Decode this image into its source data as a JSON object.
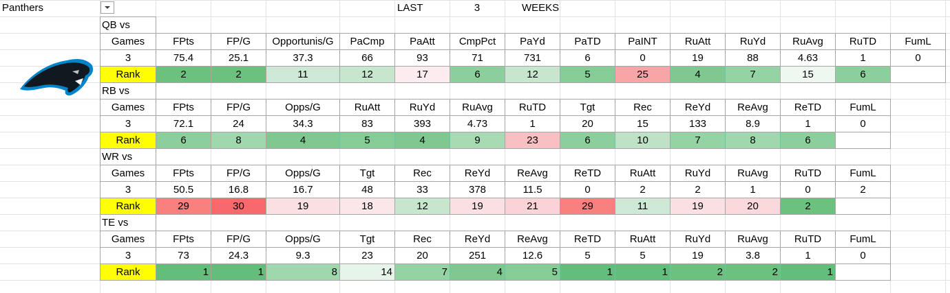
{
  "header": {
    "team": "Panthers",
    "last": "LAST",
    "weeks_count": 3,
    "weeks": "WEEKS"
  },
  "sections": [
    {
      "title": "QB vs",
      "columns": [
        "Games",
        "FPts",
        "FP/G",
        "Opportunis/G",
        "PaCmp",
        "PaAtt",
        "CmpPct",
        "PaYd",
        "PaTD",
        "PaINT",
        "RuAtt",
        "RuYd",
        "RuAvg",
        "RuTD",
        "FumL"
      ],
      "values": [
        3,
        75.4,
        25.1,
        37.3,
        66,
        93,
        71,
        731,
        6,
        0,
        19,
        88,
        4.63,
        1,
        0
      ],
      "rank_label": "Rank",
      "ranks": [
        2,
        2,
        11,
        12,
        17,
        6,
        12,
        5,
        25,
        4,
        7,
        15,
        6
      ],
      "rank_colors": [
        "#6cc17f",
        "#6cc17f",
        "#cde8d4",
        "#c6e6ce",
        "#fcecef",
        "#8ccf9c",
        "#c6e6ce",
        "#85cc96",
        "#f8a5a8",
        "#7fc991",
        "#95d3a4",
        "#eff7f1",
        "#8ccf9c"
      ],
      "rank_align": "center"
    },
    {
      "title": "RB vs",
      "columns": [
        "Games",
        "FPts",
        "FP/G",
        "Opps/G",
        "RuAtt",
        "RuYd",
        "RuAvg",
        "RuTD",
        "Tgt",
        "Rec",
        "ReYd",
        "ReAvg",
        "ReTD",
        "FumL"
      ],
      "values": [
        3,
        72.1,
        24,
        34.3,
        83,
        393,
        4.73,
        1,
        20,
        15,
        133,
        8.9,
        1,
        0
      ],
      "rank_label": "Rank",
      "ranks": [
        6,
        8,
        4,
        5,
        4,
        9,
        23,
        6,
        10,
        7,
        8,
        6
      ],
      "rank_colors": [
        "#8ccf9c",
        "#a0d8ad",
        "#7fc991",
        "#85cc96",
        "#7fc991",
        "#a8dbb3",
        "#f9c0c3",
        "#8ccf9c",
        "#bde2c6",
        "#95d3a4",
        "#a0d8ad",
        "#8ccf9c"
      ],
      "rank_align": "center"
    },
    {
      "title": "WR vs",
      "columns": [
        "Games",
        "FPts",
        "FP/G",
        "Opps/G",
        "Tgt",
        "Rec",
        "ReYd",
        "ReAvg",
        "ReTD",
        "RuAtt",
        "RuYd",
        "RuAvg",
        "RuTD",
        "FumL"
      ],
      "values": [
        3,
        50.5,
        16.8,
        16.7,
        48,
        33,
        378,
        11.5,
        0,
        2,
        2,
        1,
        0,
        2
      ],
      "rank_label": "Rank",
      "ranks": [
        29,
        30,
        19,
        18,
        12,
        19,
        21,
        29,
        11,
        19,
        20,
        2
      ],
      "rank_colors": [
        "#f8807f",
        "#f8696b",
        "#fbe0e3",
        "#fbe6e9",
        "#c6e6ce",
        "#fbe0e3",
        "#fbd2d5",
        "#f8807f",
        "#cde8d4",
        "#fbe0e3",
        "#fbd8db",
        "#6cc17f"
      ],
      "rank_align": "center"
    },
    {
      "title": "TE vs",
      "columns": [
        "Games",
        "FPts",
        "FP/G",
        "Opps/G",
        "Tgt",
        "Rec",
        "ReYd",
        "ReAvg",
        "ReTD",
        "RuAtt",
        "RuYd",
        "RuAvg",
        "RuTD",
        "FumL"
      ],
      "values": [
        3,
        73,
        24.3,
        9.3,
        23,
        20,
        251,
        12.6,
        5,
        5,
        19,
        3.8,
        1,
        0
      ],
      "rank_label": "Rank",
      "ranks": [
        1,
        1,
        8,
        14,
        7,
        4,
        5,
        1,
        1,
        2,
        2,
        1
      ],
      "rank_colors": [
        "#63be7b",
        "#63be7b",
        "#a0d8ad",
        "#e6f4ea",
        "#95d3a4",
        "#7fc991",
        "#85cc96",
        "#63be7b",
        "#63be7b",
        "#6cc17f",
        "#6cc17f",
        "#63be7b"
      ],
      "rank_align": "right"
    }
  ]
}
